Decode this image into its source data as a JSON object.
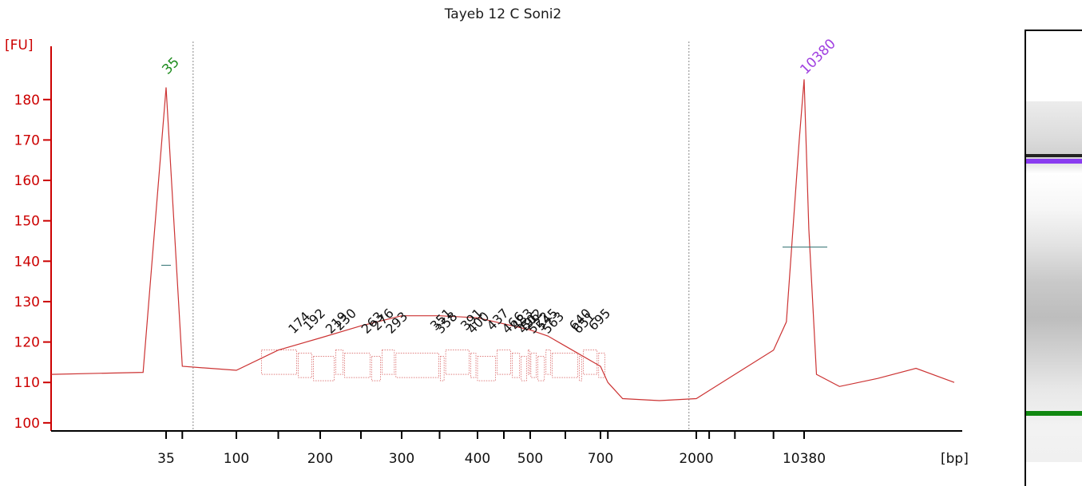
{
  "chart_data": {
    "type": "line",
    "title": "Tayeb 12 C Soni2",
    "ylabel": "[FU]",
    "xlabel": "[bp]",
    "ylim": [
      98,
      192
    ],
    "yticks": [
      100,
      110,
      120,
      130,
      140,
      150,
      160,
      170,
      180
    ],
    "xtick_labels": [
      "35",
      "100",
      "200",
      "300",
      "400",
      "500",
      "700",
      "2000",
      "10380"
    ],
    "series": [
      {
        "x_bp": [
          35,
          50,
          100,
          150,
          200,
          250,
          300,
          350,
          400,
          450,
          500,
          550,
          600,
          700,
          800,
          1000,
          1500,
          2000,
          3000,
          5000,
          8000,
          9000,
          10000,
          10380,
          11000,
          12000,
          15000,
          20000,
          25000,
          30000
        ],
        "y": [
          183,
          114,
          113,
          118,
          121,
          124,
          126.5,
          126.5,
          126,
          124.5,
          123,
          121.5,
          119,
          114,
          110,
          106,
          105.5,
          106,
          108,
          112,
          118,
          125,
          170,
          185,
          148,
          112,
          109,
          111,
          113.5,
          110
        ]
      }
    ],
    "peaks": [
      {
        "label": "35",
        "color": "#1e8c1e"
      },
      {
        "label": "10380",
        "color": "#a040e0"
      }
    ],
    "fragment_labels": [
      "174",
      "192",
      "219",
      "230",
      "263",
      "276",
      "293",
      "351",
      "358",
      "391",
      "400",
      "437",
      "466",
      "483",
      "496",
      "502",
      "522",
      "545",
      "563",
      "640",
      "651",
      "695"
    ],
    "colors": {
      "axis": "#cc0000",
      "trace": "#cc3333",
      "marker": "#1e8c1e",
      "upper": "#a040e0"
    }
  },
  "gel": {
    "bands": [
      {
        "name": "upper-marker",
        "color": "#8a3cf0"
      },
      {
        "name": "lower-marker",
        "color": "#118811"
      }
    ]
  }
}
